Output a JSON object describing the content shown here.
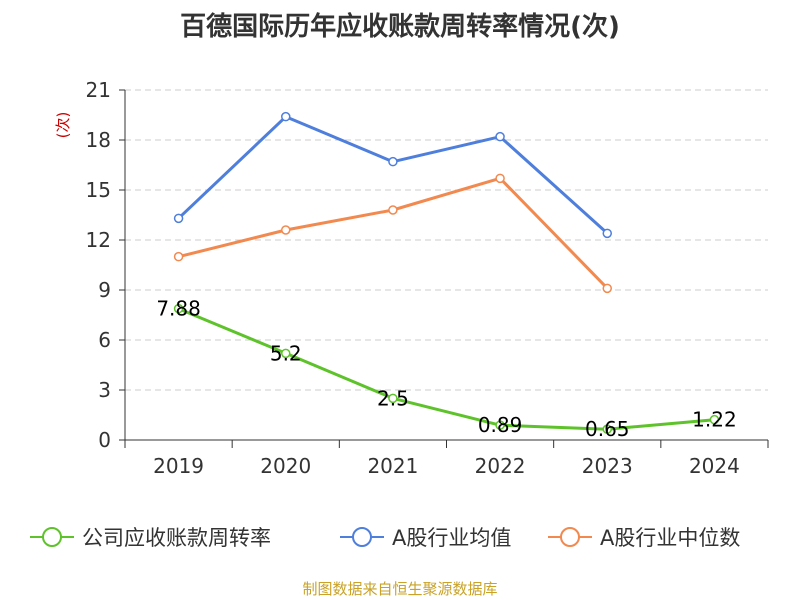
{
  "chart_data": {
    "type": "line",
    "title": "百德国际历年应收账款周转率情况(次)",
    "ylabel": "(次)",
    "xlabel": "",
    "categories": [
      "2019",
      "2020",
      "2021",
      "2022",
      "2023",
      "2024"
    ],
    "y_ticks": [
      "0",
      "3",
      "6",
      "9",
      "12",
      "15",
      "18",
      "21"
    ],
    "ylim": [
      0,
      21
    ],
    "grid": true,
    "legend_position": "bottom",
    "series": [
      {
        "name": "公司应收账款周转率",
        "color": "#5ec32b",
        "values": [
          7.88,
          5.2,
          2.5,
          0.89,
          0.65,
          1.22
        ],
        "labels": [
          "7.88",
          "5.2",
          "2.5",
          "0.89",
          "0.65",
          "1.22"
        ]
      },
      {
        "name": "A股行业均值",
        "color": "#4f7fdc",
        "values": [
          13.3,
          19.4,
          16.7,
          18.2,
          12.4,
          null
        ]
      },
      {
        "name": "A股行业中位数",
        "color": "#f2894f",
        "values": [
          11.0,
          12.6,
          13.8,
          15.7,
          9.1,
          null
        ]
      }
    ]
  },
  "source": "制图数据来自恒生聚源数据库"
}
